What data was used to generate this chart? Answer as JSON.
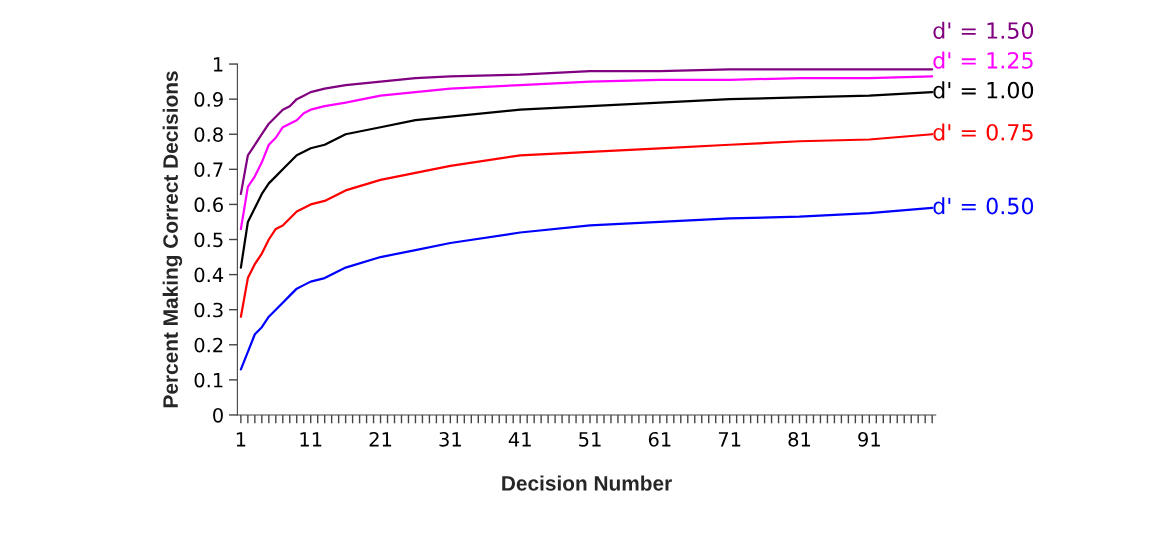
{
  "chart_data": {
    "type": "line",
    "xlabel": "Decision Number",
    "ylabel": "Percent Making Correct Decisions",
    "xlim": [
      0.5,
      100.5
    ],
    "ylim": [
      0,
      1
    ],
    "xticks": [
      1,
      {
        "value": 2,
        "label": null
      },
      {
        "value": 3,
        "label": null
      },
      {
        "value": 4,
        "label": null
      },
      {
        "value": 5,
        "label": null
      },
      {
        "value": 6,
        "label": null
      },
      {
        "value": 7,
        "label": null
      },
      {
        "value": 8,
        "label": null
      },
      {
        "value": 9,
        "label": null
      },
      {
        "value": 10,
        "label": null
      },
      11,
      {
        "value": 12,
        "label": null
      },
      {
        "value": 13,
        "label": null
      },
      {
        "value": 14,
        "label": null
      },
      {
        "value": 15,
        "label": null
      },
      {
        "value": 16,
        "label": null
      },
      {
        "value": 17,
        "label": null
      },
      {
        "value": 18,
        "label": null
      },
      {
        "value": 19,
        "label": null
      },
      {
        "value": 20,
        "label": null
      },
      21,
      {
        "value": 22,
        "label": null
      },
      {
        "value": 23,
        "label": null
      },
      {
        "value": 24,
        "label": null
      },
      {
        "value": 25,
        "label": null
      },
      {
        "value": 26,
        "label": null
      },
      {
        "value": 27,
        "label": null
      },
      {
        "value": 28,
        "label": null
      },
      {
        "value": 29,
        "label": null
      },
      {
        "value": 30,
        "label": null
      },
      31,
      {
        "value": 32,
        "label": null
      },
      {
        "value": 33,
        "label": null
      },
      {
        "value": 34,
        "label": null
      },
      {
        "value": 35,
        "label": null
      },
      {
        "value": 36,
        "label": null
      },
      {
        "value": 37,
        "label": null
      },
      {
        "value": 38,
        "label": null
      },
      {
        "value": 39,
        "label": null
      },
      {
        "value": 40,
        "label": null
      },
      41,
      {
        "value": 42,
        "label": null
      },
      {
        "value": 43,
        "label": null
      },
      {
        "value": 44,
        "label": null
      },
      {
        "value": 45,
        "label": null
      },
      {
        "value": 46,
        "label": null
      },
      {
        "value": 47,
        "label": null
      },
      {
        "value": 48,
        "label": null
      },
      {
        "value": 49,
        "label": null
      },
      {
        "value": 50,
        "label": null
      },
      51,
      {
        "value": 52,
        "label": null
      },
      {
        "value": 53,
        "label": null
      },
      {
        "value": 54,
        "label": null
      },
      {
        "value": 55,
        "label": null
      },
      {
        "value": 56,
        "label": null
      },
      {
        "value": 57,
        "label": null
      },
      {
        "value": 58,
        "label": null
      },
      {
        "value": 59,
        "label": null
      },
      {
        "value": 60,
        "label": null
      },
      61,
      {
        "value": 62,
        "label": null
      },
      {
        "value": 63,
        "label": null
      },
      {
        "value": 64,
        "label": null
      },
      {
        "value": 65,
        "label": null
      },
      {
        "value": 66,
        "label": null
      },
      {
        "value": 67,
        "label": null
      },
      {
        "value": 68,
        "label": null
      },
      {
        "value": 69,
        "label": null
      },
      {
        "value": 70,
        "label": null
      },
      71,
      {
        "value": 72,
        "label": null
      },
      {
        "value": 73,
        "label": null
      },
      {
        "value": 74,
        "label": null
      },
      {
        "value": 75,
        "label": null
      },
      {
        "value": 76,
        "label": null
      },
      {
        "value": 77,
        "label": null
      },
      {
        "value": 78,
        "label": null
      },
      {
        "value": 79,
        "label": null
      },
      {
        "value": 80,
        "label": null
      },
      81,
      {
        "value": 82,
        "label": null
      },
      {
        "value": 83,
        "label": null
      },
      {
        "value": 84,
        "label": null
      },
      {
        "value": 85,
        "label": null
      },
      {
        "value": 86,
        "label": null
      },
      {
        "value": 87,
        "label": null
      },
      {
        "value": 88,
        "label": null
      },
      {
        "value": 89,
        "label": null
      },
      {
        "value": 90,
        "label": null
      },
      91,
      {
        "value": 92,
        "label": null
      },
      {
        "value": 93,
        "label": null
      },
      {
        "value": 94,
        "label": null
      },
      {
        "value": 95,
        "label": null
      },
      {
        "value": 96,
        "label": null
      },
      {
        "value": 97,
        "label": null
      },
      {
        "value": 98,
        "label": null
      },
      {
        "value": 99,
        "label": null
      },
      {
        "value": 100,
        "label": null
      }
    ],
    "yticks": [
      0,
      0.1,
      0.2,
      0.3,
      0.4,
      0.5,
      0.6,
      0.7,
      0.8,
      0.9,
      1
    ],
    "grid": false,
    "legend": false,
    "marker": "none",
    "line_style": "solid",
    "x": [
      1,
      2,
      3,
      4,
      5,
      6,
      7,
      8,
      9,
      10,
      11,
      13,
      16,
      21,
      26,
      31,
      41,
      51,
      61,
      71,
      81,
      91,
      100
    ],
    "series": [
      {
        "name": "d' = 1.50",
        "color": "#800080",
        "values": [
          0.63,
          0.74,
          0.77,
          0.8,
          0.83,
          0.85,
          0.87,
          0.88,
          0.9,
          0.91,
          0.92,
          0.93,
          0.94,
          0.95,
          0.96,
          0.965,
          0.97,
          0.98,
          0.98,
          0.985,
          0.985,
          0.985,
          0.985
        ]
      },
      {
        "name": "d' = 1.25",
        "color": "#ff00ff",
        "values": [
          0.53,
          0.65,
          0.68,
          0.72,
          0.77,
          0.79,
          0.82,
          0.83,
          0.84,
          0.86,
          0.87,
          0.88,
          0.89,
          0.91,
          0.92,
          0.93,
          0.94,
          0.95,
          0.955,
          0.955,
          0.96,
          0.96,
          0.965
        ]
      },
      {
        "name": "d' = 1.00",
        "color": "#000000",
        "values": [
          0.42,
          0.55,
          0.59,
          0.63,
          0.66,
          0.68,
          0.7,
          0.72,
          0.74,
          0.75,
          0.76,
          0.77,
          0.8,
          0.82,
          0.84,
          0.85,
          0.87,
          0.88,
          0.89,
          0.9,
          0.905,
          0.91,
          0.92
        ]
      },
      {
        "name": "d' = 0.75",
        "color": "#ff0000",
        "values": [
          0.28,
          0.39,
          0.43,
          0.46,
          0.5,
          0.53,
          0.54,
          0.56,
          0.58,
          0.59,
          0.6,
          0.61,
          0.64,
          0.67,
          0.69,
          0.71,
          0.74,
          0.75,
          0.76,
          0.77,
          0.78,
          0.785,
          0.8
        ]
      },
      {
        "name": "d' = 0.50",
        "color": "#0000ff",
        "values": [
          0.13,
          0.18,
          0.23,
          0.25,
          0.28,
          0.3,
          0.32,
          0.34,
          0.36,
          0.37,
          0.38,
          0.39,
          0.42,
          0.45,
          0.47,
          0.49,
          0.52,
          0.54,
          0.55,
          0.56,
          0.565,
          0.575,
          0.59
        ]
      }
    ]
  }
}
